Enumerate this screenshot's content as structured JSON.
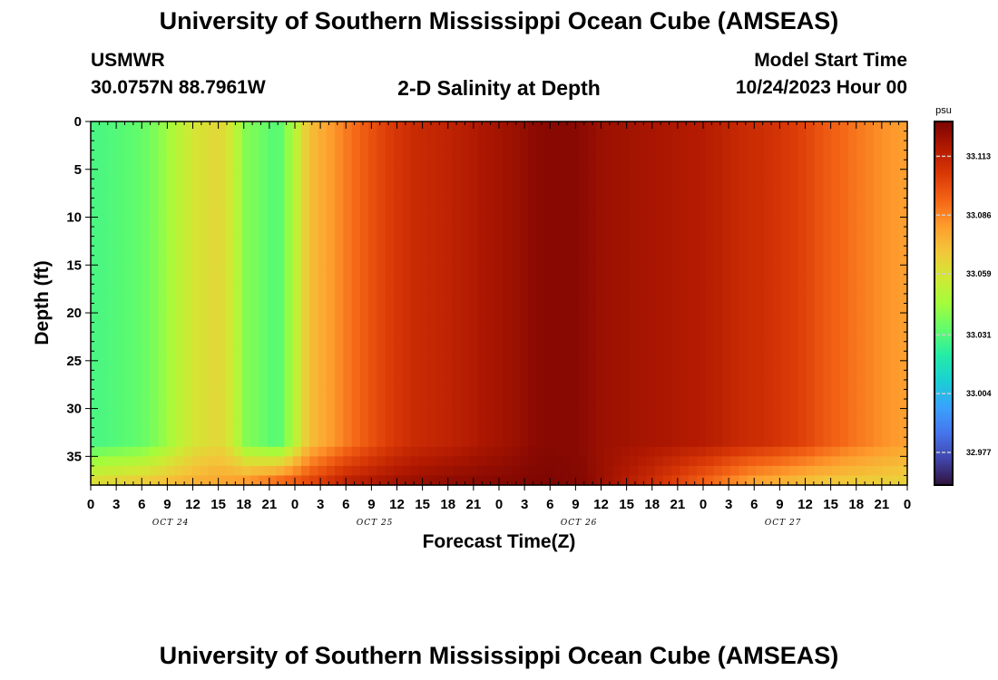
{
  "header": {
    "title": "University of Southern Mississippi Ocean Cube (AMSEAS)",
    "station": "USMWR",
    "coords": "30.0757N  88.7961W",
    "subtitle": "2-D Salinity at Depth",
    "model_start_label": "Model Start Time",
    "model_start_value": "10/24/2023 Hour 00"
  },
  "footer": {
    "title": "University of Southern Mississippi Ocean Cube (AMSEAS)"
  },
  "chart_data": {
    "type": "heatmap",
    "title": "2-D Salinity at Depth",
    "xlabel": "Forecast Time(Z)",
    "ylabel": "Depth (ft)",
    "x_range_hours": [
      0,
      96
    ],
    "x_tick_labels": [
      "0",
      "3",
      "6",
      "9",
      "12",
      "15",
      "18",
      "21",
      "0",
      "3",
      "6",
      "9",
      "12",
      "15",
      "18",
      "21",
      "0",
      "3",
      "6",
      "9",
      "12",
      "15",
      "18",
      "21",
      "0",
      "3",
      "6",
      "9",
      "12",
      "15",
      "18",
      "21",
      "0"
    ],
    "date_labels": [
      "OCT 24",
      "OCT 25",
      "OCT 26",
      "OCT 27"
    ],
    "y_range": [
      0,
      38
    ],
    "y_ticks": [
      0,
      5,
      10,
      15,
      20,
      25,
      30,
      35
    ],
    "y_inverted": true,
    "colorbar": {
      "unit": "psu",
      "range": [
        32.962,
        33.129
      ],
      "ticks": [
        33.113,
        33.086,
        33.059,
        33.031,
        33.004,
        32.977
      ]
    },
    "colors": {
      "frame": "#000000",
      "colormap": [
        "#30123b",
        "#4145ab",
        "#4675ed",
        "#39a2fc",
        "#1bcfd4",
        "#24eca6",
        "#61fc6c",
        "#a4fc3b",
        "#d1e834",
        "#f3c63a",
        "#fe9b2d",
        "#f36315",
        "#d93806",
        "#b11901",
        "#7a0402"
      ]
    },
    "surface_profile": [
      [
        0,
        33.029
      ],
      [
        2,
        33.03
      ],
      [
        6,
        33.034
      ],
      [
        8,
        33.04
      ],
      [
        10,
        33.05
      ],
      [
        12,
        33.058
      ],
      [
        15,
        33.064
      ],
      [
        17,
        33.054
      ],
      [
        18,
        33.04
      ],
      [
        20,
        33.036
      ],
      [
        21,
        33.033
      ],
      [
        22,
        33.03
      ],
      [
        23,
        33.04
      ],
      [
        24,
        33.05
      ],
      [
        25,
        33.064
      ],
      [
        26,
        33.072
      ],
      [
        28,
        33.08
      ],
      [
        30,
        33.088
      ],
      [
        32,
        33.095
      ],
      [
        35,
        33.104
      ],
      [
        38,
        33.11
      ],
      [
        42,
        33.113
      ],
      [
        46,
        33.118
      ],
      [
        50,
        33.122
      ],
      [
        52,
        33.125
      ],
      [
        54,
        33.126
      ],
      [
        57,
        33.126
      ],
      [
        60,
        33.122
      ],
      [
        66,
        33.119
      ],
      [
        70,
        33.117
      ],
      [
        72,
        33.116
      ],
      [
        74,
        33.114
      ],
      [
        76,
        33.111
      ],
      [
        80,
        33.108
      ],
      [
        84,
        33.102
      ],
      [
        86,
        33.097
      ],
      [
        90,
        33.089
      ],
      [
        94,
        33.082
      ],
      [
        96,
        33.08
      ]
    ],
    "bottom_profile": [
      [
        0,
        33.06
      ],
      [
        6,
        33.066
      ],
      [
        12,
        33.075
      ],
      [
        18,
        33.08
      ],
      [
        24,
        33.095
      ],
      [
        30,
        33.113
      ],
      [
        36,
        33.12
      ],
      [
        42,
        33.124
      ],
      [
        48,
        33.126
      ],
      [
        54,
        33.128
      ],
      [
        58,
        33.126
      ],
      [
        62,
        33.118
      ],
      [
        66,
        33.11
      ],
      [
        70,
        33.1
      ],
      [
        74,
        33.09
      ],
      [
        78,
        33.08
      ],
      [
        82,
        33.075
      ],
      [
        86,
        33.07
      ],
      [
        90,
        33.068
      ],
      [
        96,
        33.066
      ]
    ]
  }
}
